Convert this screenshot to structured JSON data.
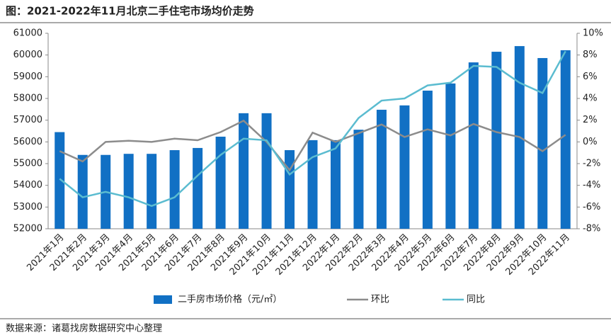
{
  "chart_data": {
    "type": "bar",
    "title": "图：2021-2022年11月北京二手住宅市场均价走势",
    "source": "数据来源：诸葛找房数据研究中心整理",
    "categories": [
      "2021年1月",
      "2021年2月",
      "2021年3月",
      "2021年4月",
      "2021年5月",
      "2021年6月",
      "2021年7月",
      "2021年8月",
      "2021年9月",
      "2021年10月",
      "2021年11月",
      "2021年12月",
      "2022年1月",
      "2022年2月",
      "2022年3月",
      "2022年4月",
      "2022年5月",
      "2022年6月",
      "2022年7月",
      "2022年8月",
      "2022年9月",
      "2022年10月",
      "2022年11月"
    ],
    "series": [
      {
        "name": "二手房市场价格（元/㎡）",
        "type": "bar",
        "color": "#1170c4",
        "values": [
          56450,
          55400,
          55400,
          55450,
          55450,
          55620,
          55720,
          56240,
          57320,
          57320,
          55620,
          56080,
          56080,
          56560,
          57480,
          57680,
          58360,
          58690,
          59660,
          60150,
          60410,
          59860,
          60220
        ]
      },
      {
        "name": "环比",
        "type": "line",
        "axis": "y2",
        "color": "#8c8c8c",
        "values": [
          -0.85,
          -1.8,
          0.0,
          0.1,
          0.0,
          0.3,
          0.15,
          0.9,
          1.95,
          0.0,
          -2.6,
          0.85,
          0.0,
          0.8,
          1.6,
          0.45,
          1.15,
          0.6,
          1.65,
          0.9,
          0.45,
          -0.85,
          0.65
        ]
      },
      {
        "name": "同比",
        "type": "line",
        "axis": "y2",
        "color": "#5bbcd0",
        "values": [
          -3.4,
          -5.1,
          -4.6,
          -5.1,
          -5.9,
          -5.1,
          -3.1,
          -1.2,
          0.3,
          0.15,
          -3.0,
          -1.4,
          -0.6,
          2.2,
          3.8,
          4.0,
          5.2,
          5.45,
          7.0,
          6.9,
          5.45,
          4.5,
          8.35
        ]
      }
    ],
    "ylim": [
      52000,
      61000
    ],
    "yticks": [
      52000,
      53000,
      54000,
      55000,
      56000,
      57000,
      58000,
      59000,
      60000,
      61000
    ],
    "y2lim": [
      -8,
      10
    ],
    "y2ticks": [
      {
        "value": -8,
        "label": "-8%"
      },
      {
        "value": -6,
        "label": "-6%"
      },
      {
        "value": -4,
        "label": "-4%"
      },
      {
        "value": -2,
        "label": "-2%"
      },
      {
        "value": 0,
        "label": "0%"
      },
      {
        "value": 2,
        "label": "2%"
      },
      {
        "value": 4,
        "label": "4%"
      },
      {
        "value": 6,
        "label": "6%"
      },
      {
        "value": 8,
        "label": "8%"
      },
      {
        "value": 10,
        "label": "10%"
      }
    ]
  }
}
